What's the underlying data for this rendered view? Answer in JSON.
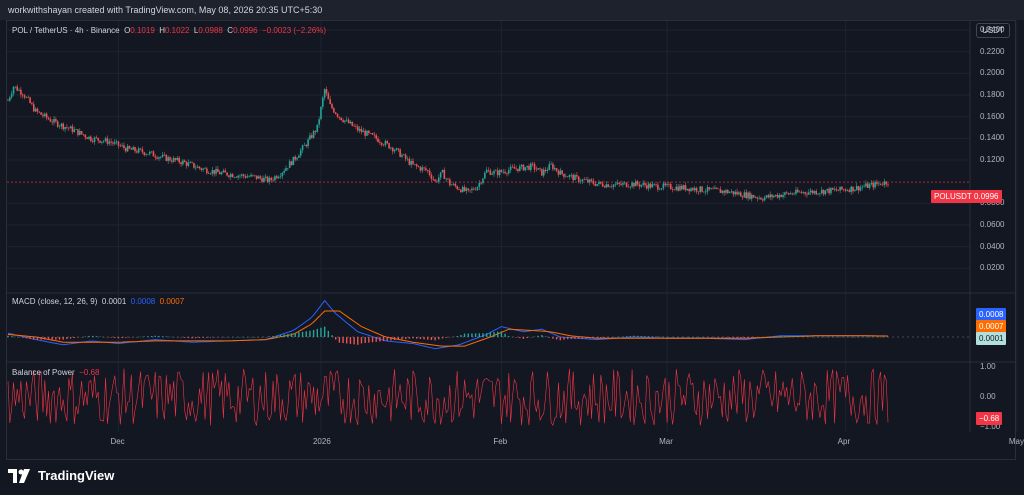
{
  "header": {
    "attribution": "workwithshayan created with TradingView.com, May 08, 2026 20:35 UTC+5:30"
  },
  "symbol": {
    "title": "POL / TetherUS · 4h · Binance",
    "o_label": "O",
    "o_value": "0.1019",
    "h_label": "H",
    "h_value": "0.1022",
    "l_label": "L",
    "l_value": "0.0988",
    "c_label": "C",
    "c_value": "0.0996",
    "change": "−0.0023 (−2.26%)"
  },
  "currency_button": "USDT",
  "price_tag": {
    "symbol": "POLUSDT",
    "value": "0.0996"
  },
  "macd_legend": {
    "title": "MACD (close, 12, 26, 9)",
    "hist": "0.0001",
    "macd": "0.0008",
    "signal": "0.0007"
  },
  "bop_legend": {
    "title": "Balance of Power",
    "value": "−0.68"
  },
  "brand": {
    "name": "TradingView"
  },
  "colors": {
    "up": "#26a69a",
    "down": "#ef5350",
    "macd": "#2962ff",
    "signal": "#ff6d00",
    "bop": "#f23645",
    "background": "#131722"
  },
  "chart_data": [
    {
      "type": "candlestick",
      "title": "POL / TetherUS · 4h · Binance",
      "ylim": [
        0.0,
        0.24
      ],
      "y_ticks": [
        "0.2400",
        "0.2200",
        "0.2000",
        "0.1800",
        "0.1600",
        "0.1400",
        "0.1200",
        "0.0800",
        "0.0600",
        "0.0400",
        "0.0200"
      ],
      "x_ticks": [
        "Dec",
        "2026",
        "Feb",
        "Mar",
        "Apr",
        "May"
      ],
      "last_price": 0.0996,
      "price_path": [
        [
          0,
          0.175
        ],
        [
          3,
          0.188
        ],
        [
          8,
          0.182
        ],
        [
          15,
          0.165
        ],
        [
          25,
          0.155
        ],
        [
          35,
          0.148
        ],
        [
          45,
          0.14
        ],
        [
          55,
          0.137
        ],
        [
          65,
          0.13
        ],
        [
          75,
          0.127
        ],
        [
          85,
          0.122
        ],
        [
          95,
          0.118
        ],
        [
          105,
          0.112
        ],
        [
          115,
          0.108
        ],
        [
          125,
          0.106
        ],
        [
          135,
          0.104
        ],
        [
          142,
          0.101
        ],
        [
          148,
          0.108
        ],
        [
          155,
          0.12
        ],
        [
          162,
          0.135
        ],
        [
          168,
          0.15
        ],
        [
          172,
          0.185
        ],
        [
          175,
          0.17
        ],
        [
          180,
          0.16
        ],
        [
          190,
          0.148
        ],
        [
          200,
          0.14
        ],
        [
          210,
          0.13
        ],
        [
          220,
          0.115
        ],
        [
          228,
          0.11
        ],
        [
          232,
          0.1
        ],
        [
          236,
          0.108
        ],
        [
          240,
          0.098
        ],
        [
          245,
          0.094
        ],
        [
          250,
          0.09
        ],
        [
          255,
          0.096
        ],
        [
          260,
          0.11
        ],
        [
          265,
          0.108
        ],
        [
          275,
          0.112
        ],
        [
          285,
          0.114
        ],
        [
          290,
          0.108
        ],
        [
          295,
          0.115
        ],
        [
          300,
          0.108
        ],
        [
          310,
          0.102
        ],
        [
          320,
          0.098
        ],
        [
          330,
          0.097
        ],
        [
          340,
          0.098
        ],
        [
          350,
          0.096
        ],
        [
          360,
          0.095
        ],
        [
          370,
          0.094
        ],
        [
          380,
          0.092
        ],
        [
          390,
          0.091
        ],
        [
          400,
          0.088
        ],
        [
          410,
          0.085
        ],
        [
          420,
          0.088
        ],
        [
          430,
          0.09
        ],
        [
          440,
          0.091
        ],
        [
          450,
          0.092
        ],
        [
          460,
          0.094
        ],
        [
          470,
          0.097
        ],
        [
          478,
          0.1
        ]
      ]
    },
    {
      "type": "line",
      "title": "MACD (close, 12, 26, 9)",
      "series": [
        {
          "name": "0.0008",
          "color": "#2962ff",
          "values": [
            [
              0,
              0.003
            ],
            [
              15,
              -0.002
            ],
            [
              30,
              -0.006
            ],
            [
              45,
              -0.003
            ],
            [
              60,
              -0.005
            ],
            [
              80,
              -0.002
            ],
            [
              100,
              -0.004
            ],
            [
              120,
              -0.003
            ],
            [
              140,
              -0.002
            ],
            [
              155,
              0.005
            ],
            [
              165,
              0.015
            ],
            [
              172,
              0.028
            ],
            [
              178,
              0.018
            ],
            [
              190,
              0.004
            ],
            [
              205,
              -0.003
            ],
            [
              220,
              -0.005
            ],
            [
              232,
              -0.009
            ],
            [
              245,
              -0.006
            ],
            [
              260,
              0.002
            ],
            [
              268,
              0.008
            ],
            [
              280,
              0.004
            ],
            [
              290,
              0.006
            ],
            [
              300,
              0.0
            ],
            [
              320,
              -0.002
            ],
            [
              340,
              0.0
            ],
            [
              360,
              -0.001
            ],
            [
              380,
              -0.001
            ],
            [
              400,
              -0.002
            ],
            [
              420,
              0.001
            ],
            [
              440,
              0.001
            ],
            [
              460,
              0.001
            ],
            [
              478,
              0.0008
            ]
          ]
        },
        {
          "name": "0.0007",
          "color": "#ff6d00",
          "values": [
            [
              0,
              0.002
            ],
            [
              15,
              0.0
            ],
            [
              30,
              -0.004
            ],
            [
              45,
              -0.004
            ],
            [
              60,
              -0.004
            ],
            [
              80,
              -0.003
            ],
            [
              100,
              -0.003
            ],
            [
              120,
              -0.003
            ],
            [
              140,
              -0.002
            ],
            [
              155,
              0.002
            ],
            [
              165,
              0.01
            ],
            [
              172,
              0.02
            ],
            [
              180,
              0.02
            ],
            [
              192,
              0.008
            ],
            [
              205,
              0.0
            ],
            [
              220,
              -0.004
            ],
            [
              235,
              -0.007
            ],
            [
              248,
              -0.007
            ],
            [
              262,
              0.0
            ],
            [
              272,
              0.006
            ],
            [
              285,
              0.005
            ],
            [
              295,
              0.004
            ],
            [
              305,
              0.001
            ],
            [
              320,
              -0.001
            ],
            [
              340,
              -0.001
            ],
            [
              360,
              -0.001
            ],
            [
              380,
              -0.001
            ],
            [
              400,
              -0.001
            ],
            [
              420,
              0.0
            ],
            [
              440,
              0.001
            ],
            [
              460,
              0.001
            ],
            [
              478,
              0.0007
            ]
          ]
        }
      ],
      "last_values": {
        "macd": 0.0008,
        "signal": 0.0007,
        "histogram": 0.0001
      }
    },
    {
      "type": "bar",
      "title": "Balance of Power",
      "ylim": [
        -1.0,
        1.0
      ],
      "y_ticks": [
        "1.00",
        "0.00",
        "−1.00"
      ],
      "last_value": -0.68
    }
  ]
}
